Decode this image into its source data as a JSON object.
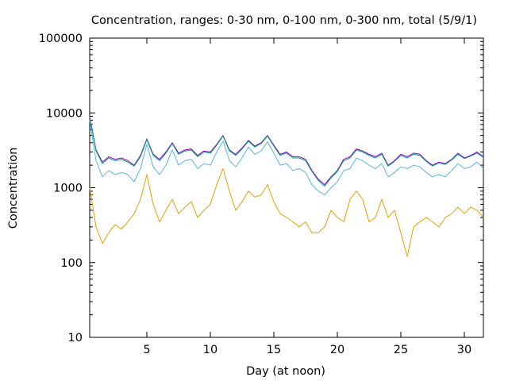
{
  "chart_data": {
    "type": "line",
    "title": "Concentration, ranges: 0-30 nm, 0-100 nm, 0-300 nm, total (5/9/1)",
    "xlabel": "Day (at noon)",
    "ylabel": "Concentration",
    "xlim": [
      0.5,
      31.5
    ],
    "ylim": [
      10,
      100000
    ],
    "y_scale": "log",
    "grid": false,
    "legend": "none",
    "x_ticks": [
      5,
      10,
      15,
      20,
      25,
      30
    ],
    "x_tick_labels": [
      "5",
      "10",
      "15",
      "20",
      "25",
      "30"
    ],
    "y_ticks": [
      10,
      100,
      1000,
      10000,
      100000
    ],
    "y_tick_labels": [
      "10",
      "100",
      "1000",
      "10000",
      "100000"
    ],
    "colors": [
      "#9400d3",
      "#009e73",
      "#56b4e9",
      "#e69f00"
    ],
    "series": [
      {
        "x": [
          0.5,
          1.0,
          1.5,
          2.0,
          2.5,
          3.0,
          3.5,
          4.0,
          4.5,
          5.0,
          5.5,
          6.0,
          6.5,
          7.0,
          7.5,
          8.0,
          8.5,
          9.0,
          9.5,
          10.0,
          10.5,
          11.0,
          11.5,
          12.0,
          12.5,
          13.0,
          13.5,
          14.0,
          14.5,
          15.0,
          15.5,
          16.0,
          16.5,
          17.0,
          17.5,
          18.0,
          18.5,
          19.0,
          19.5,
          20.0,
          20.5,
          21.0,
          21.5,
          22.0,
          22.5,
          23.0,
          23.5,
          24.0,
          24.5,
          25.0,
          25.5,
          26.0,
          26.5,
          27.0,
          27.5,
          28.0,
          28.5,
          29.0,
          29.5,
          30.0,
          30.5,
          31.0,
          31.5
        ],
        "values": [
          9000,
          3200,
          2200,
          2600,
          2400,
          2500,
          2300,
          2000,
          2700,
          4500,
          2800,
          2400,
          3000,
          4000,
          2900,
          3200,
          3300,
          2700,
          3100,
          3000,
          3800,
          5000,
          3200,
          2800,
          3400,
          4300,
          3600,
          4000,
          5000,
          3700,
          2800,
          3000,
          2600,
          2600,
          2400,
          1700,
          1300,
          1100,
          1400,
          1700,
          2400,
          2600,
          3300,
          3100,
          2800,
          2600,
          2900,
          2000,
          2300,
          2800,
          2600,
          2900,
          2800,
          2300,
          2000,
          2200,
          2100,
          2400,
          2900,
          2500,
          2700,
          3000,
          2600
        ]
      },
      {
        "x": [
          0.5,
          1.0,
          1.5,
          2.0,
          2.5,
          3.0,
          3.5,
          4.0,
          4.5,
          5.0,
          5.5,
          6.0,
          6.5,
          7.0,
          7.5,
          8.0,
          8.5,
          9.0,
          9.5,
          10.0,
          10.5,
          11.0,
          11.5,
          12.0,
          12.5,
          13.0,
          13.5,
          14.0,
          14.5,
          15.0,
          15.5,
          16.0,
          16.5,
          17.0,
          17.5,
          18.0,
          18.5,
          19.0,
          19.5,
          20.0,
          20.5,
          21.0,
          21.5,
          22.0,
          22.5,
          23.0,
          23.5,
          24.0,
          24.5,
          25.0,
          25.5,
          26.0,
          26.5,
          27.0,
          27.5,
          28.0,
          28.5,
          29.0,
          29.5,
          30.0,
          30.5,
          31.0,
          31.5
        ],
        "values": [
          8800,
          3100,
          2100,
          2500,
          2300,
          2400,
          2200,
          1950,
          2600,
          4400,
          2700,
          2300,
          2900,
          3900,
          2800,
          3100,
          3200,
          2600,
          3000,
          2900,
          3700,
          4900,
          3100,
          2700,
          3300,
          4200,
          3500,
          3900,
          4900,
          3600,
          2700,
          2900,
          2500,
          2500,
          2300,
          1650,
          1250,
          1050,
          1350,
          1650,
          2300,
          2500,
          3200,
          3000,
          2700,
          2500,
          2800,
          1950,
          2250,
          2700,
          2500,
          2800,
          2700,
          2250,
          1950,
          2150,
          2050,
          2350,
          2800,
          2450,
          2650,
          2900,
          2550
        ]
      },
      {
        "x": [
          0.5,
          1.0,
          1.5,
          2.0,
          2.5,
          3.0,
          3.5,
          4.0,
          4.5,
          5.0,
          5.5,
          6.0,
          6.5,
          7.0,
          7.5,
          8.0,
          8.5,
          9.0,
          9.5,
          10.0,
          10.5,
          11.0,
          11.5,
          12.0,
          12.5,
          13.0,
          13.5,
          14.0,
          14.5,
          15.0,
          15.5,
          16.0,
          16.5,
          17.0,
          17.5,
          18.0,
          18.5,
          19.0,
          19.5,
          20.0,
          20.5,
          21.0,
          21.5,
          22.0,
          22.5,
          23.0,
          23.5,
          24.0,
          24.5,
          25.0,
          25.5,
          26.0,
          26.5,
          27.0,
          27.5,
          28.0,
          28.5,
          29.0,
          29.5,
          30.0,
          30.5,
          31.0,
          31.5
        ],
        "values": [
          8000,
          2300,
          1400,
          1700,
          1500,
          1600,
          1500,
          1200,
          1800,
          3800,
          1900,
          1500,
          2000,
          3200,
          2000,
          2300,
          2400,
          1800,
          2100,
          2000,
          3000,
          4200,
          2300,
          1900,
          2500,
          3500,
          2800,
          3100,
          4100,
          2900,
          2000,
          2100,
          1700,
          1800,
          1600,
          1100,
          900,
          800,
          1000,
          1200,
          1700,
          1800,
          2500,
          2300,
          2000,
          1800,
          2100,
          1400,
          1600,
          1900,
          1800,
          2000,
          1900,
          1600,
          1400,
          1500,
          1400,
          1700,
          2100,
          1800,
          1900,
          2200,
          1800
        ]
      },
      {
        "x": [
          0.5,
          1.0,
          1.5,
          2.0,
          2.5,
          3.0,
          3.5,
          4.0,
          4.5,
          5.0,
          5.5,
          6.0,
          6.5,
          7.0,
          7.5,
          8.0,
          8.5,
          9.0,
          9.5,
          10.0,
          10.5,
          11.0,
          11.5,
          12.0,
          12.5,
          13.0,
          13.5,
          14.0,
          14.5,
          15.0,
          15.5,
          16.0,
          16.5,
          17.0,
          17.5,
          18.0,
          18.5,
          19.0,
          19.5,
          20.0,
          20.5,
          21.0,
          21.5,
          22.0,
          22.5,
          23.0,
          23.5,
          24.0,
          24.5,
          25.0,
          25.5,
          26.0,
          26.5,
          27.0,
          27.5,
          28.0,
          28.5,
          29.0,
          29.5,
          30.0,
          30.5,
          31.0,
          31.5
        ],
        "values": [
          1000,
          300,
          180,
          250,
          320,
          280,
          350,
          450,
          700,
          1500,
          600,
          350,
          500,
          700,
          450,
          550,
          650,
          400,
          500,
          600,
          1100,
          1800,
          900,
          500,
          650,
          900,
          750,
          800,
          1100,
          650,
          450,
          400,
          350,
          300,
          350,
          250,
          250,
          300,
          500,
          400,
          350,
          700,
          900,
          700,
          350,
          400,
          700,
          400,
          500,
          250,
          120,
          300,
          350,
          400,
          350,
          300,
          400,
          450,
          550,
          450,
          550,
          500,
          400
        ]
      }
    ]
  }
}
